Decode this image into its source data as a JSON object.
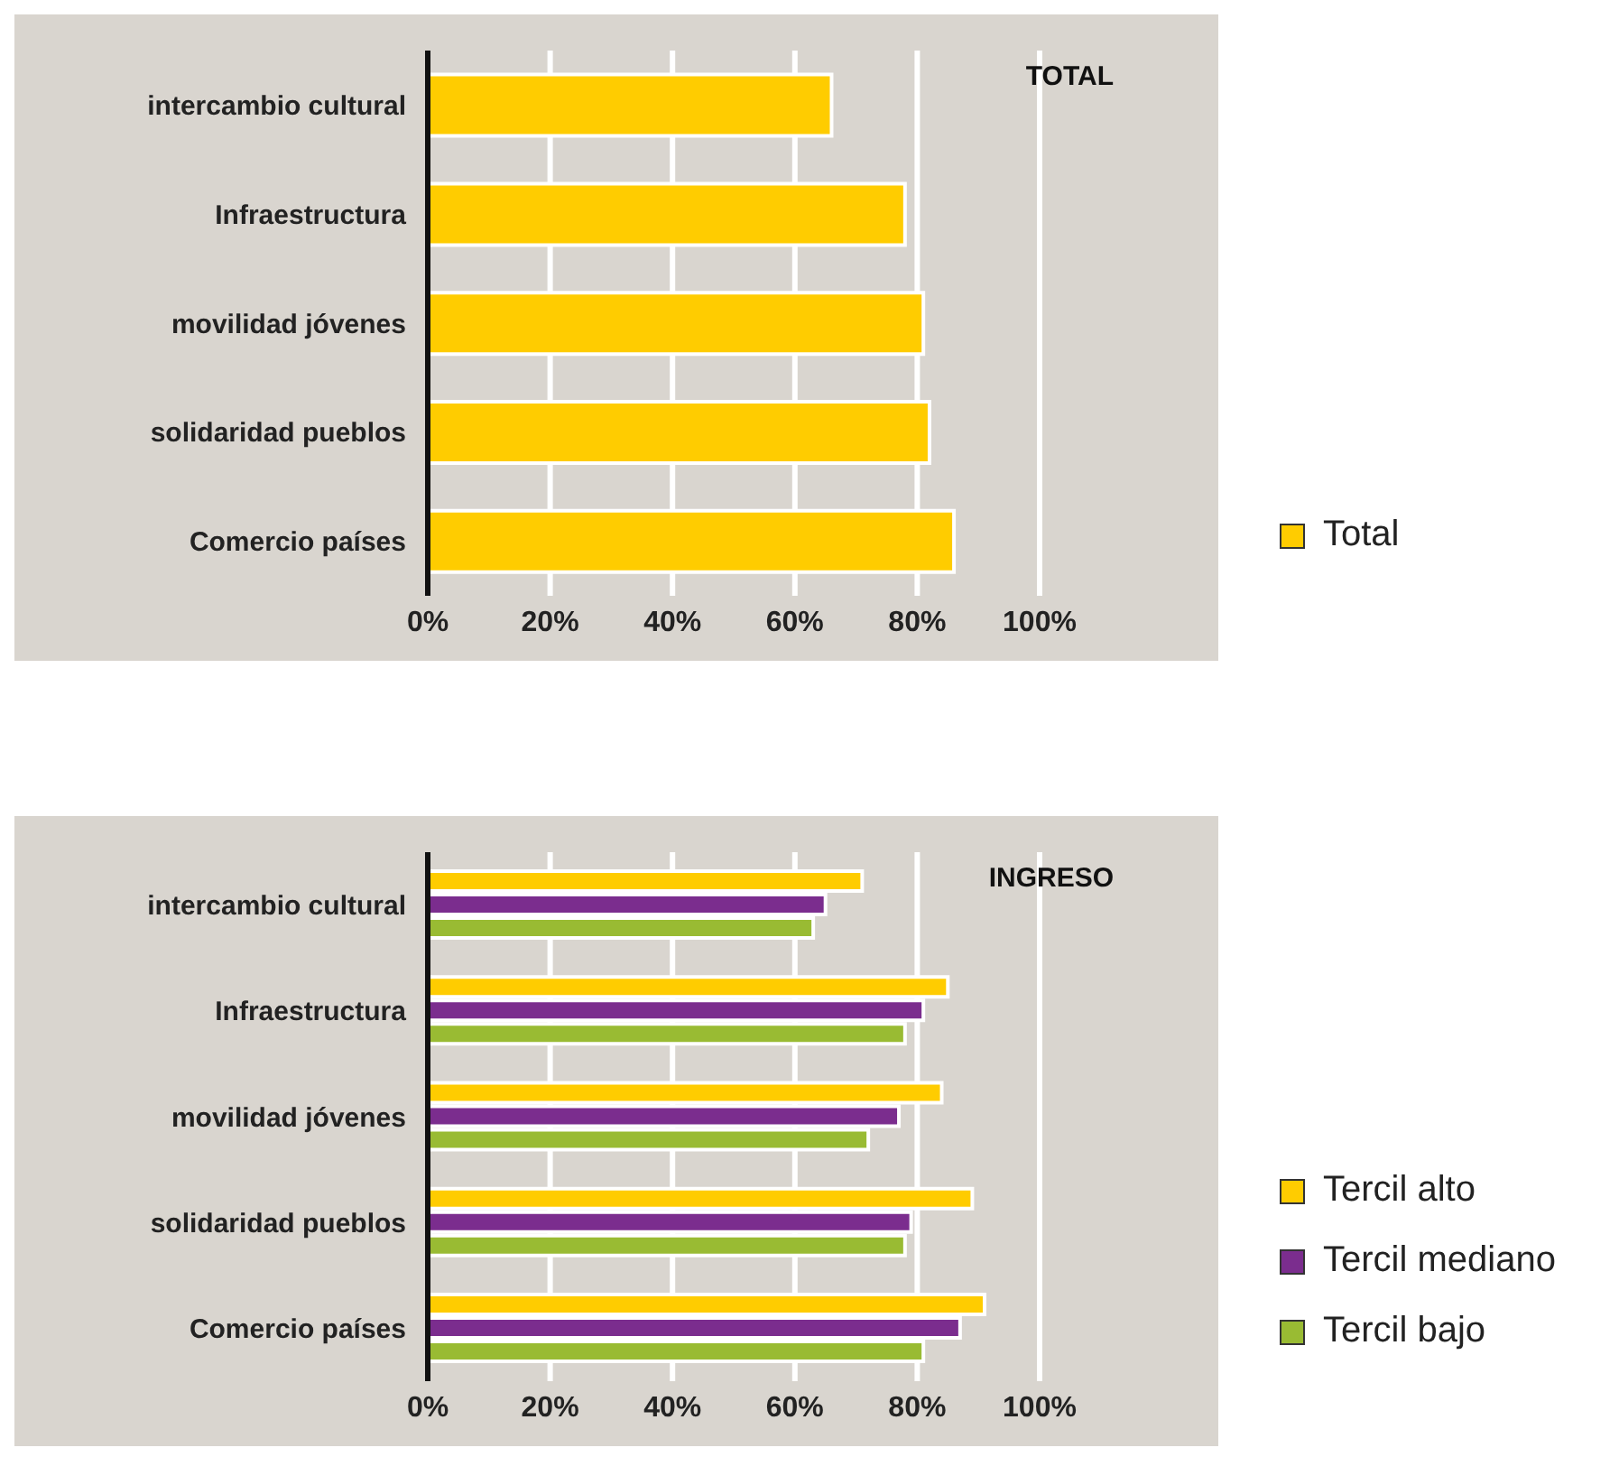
{
  "chart_data": [
    {
      "type": "bar",
      "orientation": "horizontal",
      "title": "TOTAL",
      "categories": [
        "intercambio cultural",
        "Infraestructura",
        "movilidad jóvenes",
        "solidaridad pueblos",
        "Comercio países"
      ],
      "series": [
        {
          "name": "Total",
          "color": "#ffcc00",
          "values": [
            66,
            78,
            81,
            82,
            86
          ]
        }
      ],
      "xlim": [
        0,
        100
      ],
      "xticks": [
        {
          "value": 0,
          "label": "0%"
        },
        {
          "value": 20,
          "label": "20%"
        },
        {
          "value": 40,
          "label": "40%"
        },
        {
          "value": 60,
          "label": "60%"
        },
        {
          "value": 80,
          "label": "80%"
        },
        {
          "value": 100,
          "label": "100%"
        }
      ],
      "grid": "x",
      "legend": "right"
    },
    {
      "type": "bar",
      "orientation": "horizontal",
      "title": "INGRESO",
      "categories": [
        "intercambio cultural",
        "Infraestructura",
        "movilidad jóvenes",
        "solidaridad pueblos",
        "Comercio países"
      ],
      "series": [
        {
          "name": "Tercil alto",
          "color": "#ffcc00",
          "values": [
            71,
            85,
            84,
            89,
            91
          ]
        },
        {
          "name": "Tercil mediano",
          "color": "#7b2d8e",
          "values": [
            65,
            81,
            77,
            79,
            87
          ]
        },
        {
          "name": "Tercil bajo",
          "color": "#99bb33",
          "values": [
            63,
            78,
            72,
            78,
            81
          ]
        }
      ],
      "xlim": [
        0,
        100
      ],
      "xticks": [
        {
          "value": 0,
          "label": "0%"
        },
        {
          "value": 20,
          "label": "20%"
        },
        {
          "value": 40,
          "label": "40%"
        },
        {
          "value": 60,
          "label": "60%"
        },
        {
          "value": 80,
          "label": "80%"
        },
        {
          "value": 100,
          "label": "100%"
        }
      ],
      "grid": "x",
      "legend": "right"
    }
  ]
}
